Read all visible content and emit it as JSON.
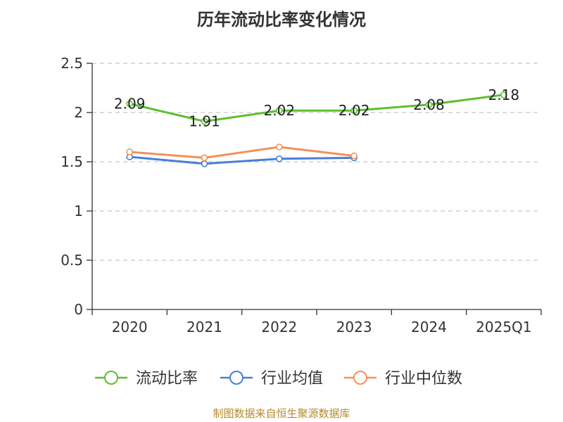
{
  "title": "历年流动比率变化情况",
  "source_text": "制图数据来自恒生聚源数据库",
  "colors": {
    "流动比率": "#5cc02e",
    "行业均值": "#4a7fd6",
    "行业中位数": "#f4905c",
    "grid": "#c8c8c8",
    "axis": "#333333"
  },
  "chart_data": {
    "type": "line",
    "title": "历年流动比率变化情况",
    "categories": [
      "2020",
      "2021",
      "2022",
      "2023",
      "2024",
      "2025Q1"
    ],
    "y_ticks": [
      "0",
      "0.5",
      "1",
      "1.5",
      "2",
      "2.5"
    ],
    "ylim": [
      0,
      2.5
    ],
    "grid": true,
    "legend_position": "bottom",
    "series": [
      {
        "name": "流动比率",
        "values": [
          2.09,
          1.91,
          2.02,
          2.02,
          2.08,
          2.18
        ],
        "labels": [
          "2.09",
          "1.91",
          "2.02",
          "2.02",
          "2.08",
          "2.18"
        ]
      },
      {
        "name": "行业均值",
        "values": [
          1.55,
          1.48,
          1.53,
          1.54,
          null,
          null
        ]
      },
      {
        "name": "行业中位数",
        "values": [
          1.6,
          1.54,
          1.65,
          1.56,
          null,
          null
        ]
      }
    ]
  }
}
